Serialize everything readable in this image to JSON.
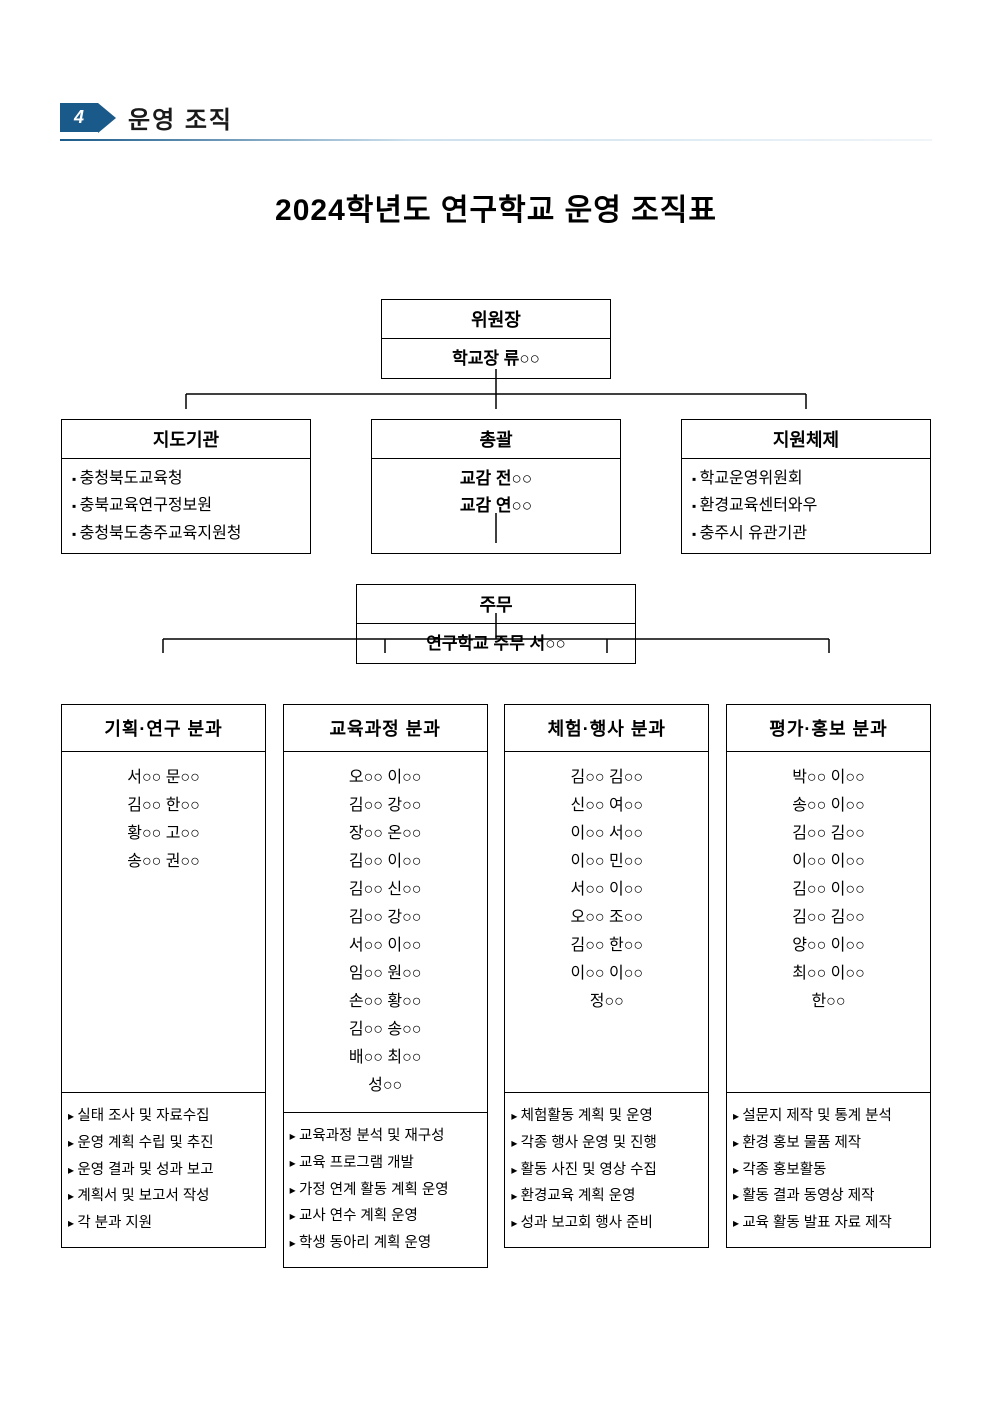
{
  "section": {
    "number": "4",
    "label": "운영 조직"
  },
  "title": "2024학년도 연구학교 운영 조직표",
  "chairman": {
    "header": "위원장",
    "name": "학교장 류○○"
  },
  "guidance": {
    "header": "지도기관",
    "items": [
      "충청북도교육청",
      "충북교육연구정보원",
      "충청북도충주교육지원청"
    ]
  },
  "overall": {
    "header": "총괄",
    "lines": [
      "교감 전○○",
      "교감 연○○"
    ]
  },
  "support": {
    "header": "지원체제",
    "items": [
      "학교운영위원회",
      "환경교육센터와우",
      "충주시 유관기관"
    ]
  },
  "main_office": {
    "header": "주무",
    "name": "연구학교 주무 서○○"
  },
  "subcommittees": [
    {
      "title": "기획·연구 분과",
      "members": [
        "서○○ 문○○",
        "김○○ 한○○",
        "황○○ 고○○",
        "송○○ 권○○"
      ],
      "tasks": [
        "실태 조사 및 자료수집",
        "운영 계획 수립 및 추진",
        "운영 결과 및 성과 보고",
        "계획서 및 보고서 작성",
        "각 분과 지원"
      ]
    },
    {
      "title": "교육과정 분과",
      "members": [
        "오○○ 이○○",
        "김○○ 강○○",
        "장○○ 온○○",
        "김○○ 이○○",
        "김○○ 신○○",
        "김○○ 강○○",
        "서○○ 이○○",
        "임○○ 원○○",
        "손○○ 황○○",
        "김○○ 송○○",
        "배○○ 최○○",
        "성○○"
      ],
      "tasks": [
        "교육과정 분석 및 재구성",
        "교육 프로그램 개발",
        "가정 연계 활동 계획 운영",
        "교사 연수 계획 운영",
        "학생 동아리 계획 운영"
      ]
    },
    {
      "title": "체험·행사 분과",
      "members": [
        "김○○ 김○○",
        "신○○ 여○○",
        "이○○ 서○○",
        "이○○ 민○○",
        "서○○ 이○○",
        "오○○ 조○○",
        "김○○ 한○○",
        "이○○ 이○○",
        "정○○"
      ],
      "tasks": [
        "체험활동 계획 및 운영",
        "각종 행사 운영 및 진행",
        "활동 사진 및 영상 수집",
        "환경교육 계획 운영",
        "성과 보고회 행사 준비"
      ]
    },
    {
      "title": "평가·홍보 분과",
      "members": [
        "박○○ 이○○",
        "송○○ 이○○",
        "김○○ 김○○",
        "이○○ 이○○",
        "김○○ 이○○",
        "김○○ 김○○",
        "양○○ 이○○",
        "최○○ 이○○",
        "한○○"
      ],
      "tasks": [
        "설문지 제작 및 통계 분석",
        "환경 홍보 물품 제작",
        "각종 홍보활동",
        "활동 결과 동영상 제작",
        "교육 활동 발표 자료 제작"
      ]
    }
  ],
  "styling": {
    "badge_bg": "#1a5a8a",
    "badge_color": "#ffffff",
    "border_color": "#000000",
    "page_bg": "#ffffff",
    "title_fontsize": 30,
    "header_fontsize": 18,
    "body_fontsize": 16,
    "task_fontsize": 14.5,
    "org_type": "tree"
  }
}
